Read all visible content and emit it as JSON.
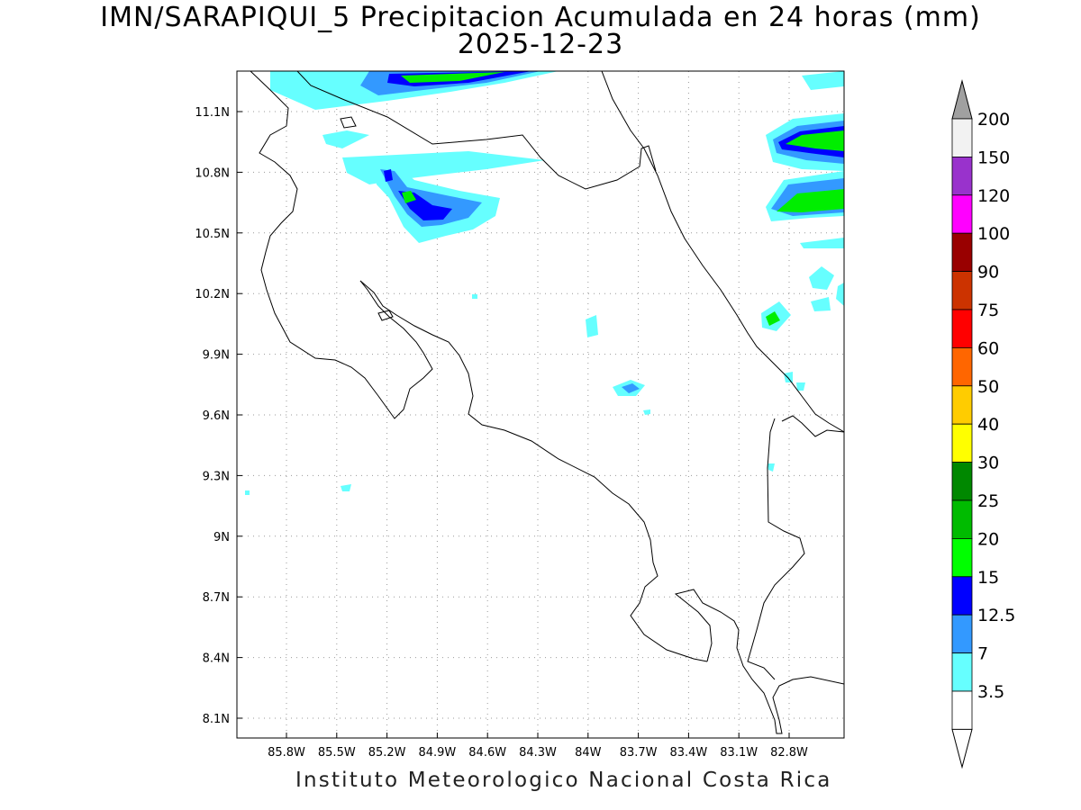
{
  "title_line1": "IMN/SARAPIQUI_5 Precipitacion Acumulada en 24 horas (mm)",
  "title_line2": "2025-12-23",
  "footer": "Instituto Meteorologico Nacional Costa Rica",
  "map": {
    "lon_range": [
      -86.0,
      -82.5
    ],
    "lat_range": [
      8.0,
      11.3
    ],
    "lon_ticks": [
      "85.8W",
      "85.5W",
      "85.2W",
      "84.9W",
      "84.6W",
      "84.3W",
      "84W",
      "83.7W",
      "83.4W",
      "83.1W",
      "82.8W"
    ],
    "lat_ticks": [
      "11.1N",
      "10.8N",
      "10.5N",
      "10.2N",
      "9.9N",
      "9.6N",
      "9.3N",
      "9N",
      "8.7N",
      "8.4N",
      "8.1N"
    ],
    "grid": "dotted"
  },
  "colorbar": {
    "labels": [
      "200",
      "150",
      "120",
      "100",
      "90",
      "75",
      "60",
      "50",
      "40",
      "30",
      "25",
      "20",
      "15",
      "12.5",
      "7",
      "3.5"
    ],
    "colors": [
      "#f2f2f2",
      "#9932cc",
      "#ff00ff",
      "#990000",
      "#cc3300",
      "#ff0000",
      "#ff6600",
      "#ffcc00",
      "#ffff00",
      "#008800",
      "#00bb00",
      "#00ff00",
      "#0000ff",
      "#3399ff",
      "#66ffff",
      "#ffffff"
    ],
    "top_triangle_color": "#a0a0a0",
    "bottom_triangle_color": "#ffffff"
  },
  "palette": {
    "c35": "#66ffff",
    "c7": "#3399ff",
    "c125": "#0000ff",
    "c15": "#00ee00",
    "c20": "#00bb00"
  }
}
